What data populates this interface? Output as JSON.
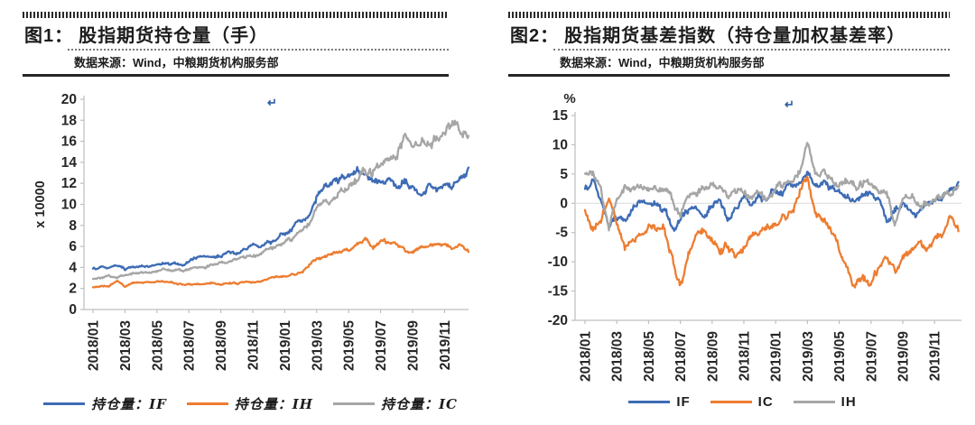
{
  "figure1": {
    "tag": "图1：",
    "title": "股指期货持仓量（手）",
    "source": "数据来源：Wind，中粮期货机构服务部",
    "return_mark": "↵",
    "legend": [
      {
        "label": "持仓量：IF",
        "color": "#3E6CB5"
      },
      {
        "label": "持仓量：IH",
        "color": "#ED7D31"
      },
      {
        "label": "持仓量：IC",
        "color": "#A6A6A6"
      }
    ]
  },
  "figure2": {
    "tag": "图2：",
    "title": "股指期货基差指数（持仓量加权基差率）",
    "source": "数据来源：Wind，中粮期货机构服务部",
    "return_mark": "↵",
    "legend": [
      {
        "label": "IF",
        "color": "#3E6CB5"
      },
      {
        "label": "IC",
        "color": "#ED7D31"
      },
      {
        "label": "IH",
        "color": "#A6A6A6"
      }
    ]
  },
  "chart_data": [
    {
      "type": "line",
      "title": "股指期货持仓量（手）",
      "ylabel": "x 10000",
      "ylabel_rotated": true,
      "ylim": [
        0,
        20
      ],
      "ytick_step": 2,
      "clamp_min": 0.15,
      "x_months": 23.5,
      "grid": false,
      "zero_line": false,
      "legend_position": "bottom",
      "x_tick_labels": [
        "2018/01",
        "2018/03",
        "2018/05",
        "2018/07",
        "2018/09",
        "2018/11",
        "2019/01",
        "2019/03",
        "2019/05",
        "2019/07",
        "2019/09",
        "2019/11"
      ],
      "series": [
        {
          "name": "持仓量：IF",
          "color": "#3E6CB5",
          "noise": 0.035,
          "noise_mode": "proportional",
          "values": [
            3.9,
            4.1,
            4.05,
            4.2,
            3.9,
            4.15,
            4.2,
            4.05,
            4.3,
            4.25,
            4.3,
            4.2,
            4.5,
            4.9,
            5.0,
            5.15,
            5.2,
            5.5,
            5.4,
            5.7,
            6.0,
            5.9,
            6.3,
            6.6,
            7.0,
            7.8,
            8.2,
            9.0,
            10.8,
            11.8,
            12.2,
            12.6,
            12.4,
            14.0,
            12.8,
            12.0,
            11.8,
            12.2,
            11.6,
            12.3,
            11.4,
            10.9,
            11.6,
            11.2,
            11.8,
            11.4,
            12.2,
            13.3
          ]
        },
        {
          "name": "持仓量：IH",
          "color": "#ED7D31",
          "noise": 0.035,
          "noise_mode": "proportional",
          "values": [
            2.1,
            2.2,
            2.15,
            2.7,
            2.1,
            2.5,
            2.6,
            2.65,
            2.6,
            2.55,
            2.5,
            2.45,
            2.4,
            2.45,
            2.4,
            2.5,
            2.45,
            2.55,
            2.5,
            2.6,
            2.55,
            2.7,
            2.9,
            3.0,
            3.1,
            3.3,
            3.5,
            4.2,
            4.9,
            5.2,
            5.3,
            5.4,
            5.6,
            6.2,
            6.9,
            6.0,
            6.3,
            6.2,
            6.3,
            5.7,
            5.6,
            6.0,
            5.9,
            6.1,
            6.2,
            5.9,
            6.2,
            5.8
          ]
        },
        {
          "name": "持仓量：IC",
          "color": "#A6A6A6",
          "noise": 0.035,
          "noise_mode": "proportional",
          "values": [
            2.9,
            3.05,
            3.3,
            2.95,
            3.25,
            3.4,
            3.45,
            3.55,
            3.65,
            3.7,
            3.75,
            3.7,
            3.85,
            3.95,
            4.05,
            4.25,
            4.4,
            4.55,
            4.7,
            4.85,
            5.1,
            5.3,
            5.7,
            6.0,
            6.4,
            6.8,
            7.3,
            7.9,
            9.6,
            10.4,
            10.3,
            11.3,
            11.9,
            12.6,
            13.1,
            12.7,
            13.9,
            14.4,
            14.9,
            16.2,
            15.2,
            15.7,
            15.6,
            16.4,
            16.7,
            17.6,
            17.3,
            16.9
          ]
        }
      ]
    },
    {
      "type": "line",
      "title": "股指期货基差指数（持仓量加权基差率）",
      "ylabel": "%",
      "ylabel_rotated": false,
      "ylim": [
        -20,
        15
      ],
      "ytick_step": 5,
      "x_months": 23.5,
      "grid": false,
      "zero_line": true,
      "legend_position": "bottom",
      "x_tick_labels": [
        "2018/01",
        "2018/03",
        "2018/05",
        "2018/07",
        "2018/09",
        "2018/11",
        "2019/01",
        "2019/03",
        "2019/05",
        "2019/07",
        "2019/09",
        "2019/11"
      ],
      "series": [
        {
          "name": "IF",
          "color": "#3E6CB5",
          "noise": 0.75,
          "noise_mode": "constant",
          "values": [
            2.5,
            4.3,
            1.0,
            -4.0,
            -2.0,
            -2.5,
            -0.5,
            0.3,
            0.0,
            -0.8,
            -1.5,
            -4.5,
            -3.0,
            -1.5,
            -1.0,
            -1.8,
            0.3,
            0.5,
            -2.5,
            -1.0,
            0.5,
            -0.5,
            0.8,
            0.5,
            1.5,
            2.0,
            2.5,
            3.8,
            5.5,
            3.0,
            3.8,
            2.8,
            1.5,
            2.2,
            0.2,
            1.0,
            1.2,
            0.3,
            -3.2,
            -1.0,
            -0.5,
            -1.2,
            -2.2,
            -0.3,
            0.2,
            0.5,
            1.8,
            3.3
          ]
        },
        {
          "name": "IC",
          "color": "#ED7D31",
          "noise": 0.8,
          "noise_mode": "constant",
          "values": [
            -1.5,
            -4.8,
            -3.5,
            0.5,
            -4.0,
            -8.0,
            -6.0,
            -5.0,
            -4.5,
            -5.2,
            -4.8,
            -9.0,
            -14.3,
            -8.5,
            -5.5,
            -5.0,
            -5.5,
            -8.0,
            -7.0,
            -9.5,
            -8.0,
            -5.0,
            -5.5,
            -5.0,
            -4.0,
            -2.5,
            -1.5,
            2.0,
            4.8,
            -1.0,
            -3.0,
            -5.0,
            -8.0,
            -11.0,
            -13.8,
            -12.0,
            -14.8,
            -11.5,
            -9.0,
            -11.5,
            -8.5,
            -8.0,
            -7.0,
            -8.5,
            -6.0,
            -5.0,
            -2.0,
            -3.5
          ]
        },
        {
          "name": "IH",
          "color": "#A6A6A6",
          "noise": 0.75,
          "noise_mode": "constant",
          "values": [
            5.0,
            5.5,
            3.0,
            -4.8,
            0.5,
            2.5,
            2.0,
            3.2,
            2.5,
            1.5,
            2.8,
            0.5,
            -2.0,
            1.0,
            2.0,
            2.5,
            2.8,
            3.0,
            0.5,
            1.5,
            2.0,
            1.0,
            1.5,
            0.5,
            2.5,
            3.5,
            3.0,
            4.8,
            10.2,
            5.0,
            5.5,
            4.0,
            3.5,
            4.5,
            2.5,
            3.0,
            3.5,
            2.0,
            2.5,
            -4.5,
            0.5,
            1.0,
            -0.5,
            0.0,
            0.5,
            1.0,
            2.0,
            3.5
          ]
        }
      ]
    }
  ]
}
